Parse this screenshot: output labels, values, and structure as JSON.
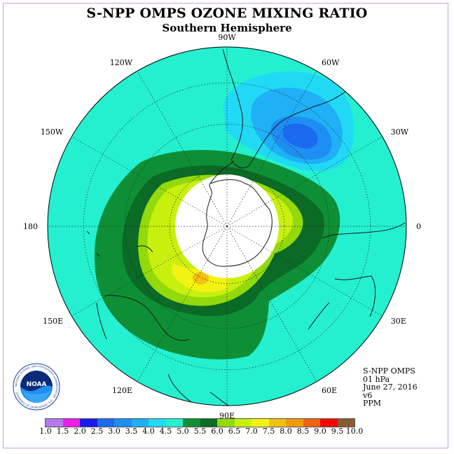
{
  "title": "S-NPP OMPS OZONE MIXING RATIO",
  "subtitle": "Southern Hemisphere",
  "longitude_labels": [
    "90W",
    "60W",
    "30W",
    "0",
    "30E",
    "60E",
    "90E",
    "120E",
    "150E",
    "180",
    "150W",
    "120W"
  ],
  "info": {
    "instrument": "S-NPP OMPS",
    "level": "01 hPa",
    "date": "June 27, 2016",
    "version": "v6",
    "units": "PPM"
  },
  "logo": {
    "text": "NOAA",
    "ring_text": "NATIONAL OCEANIC AND ATMOSPHERIC ADMINISTRATION · U.S. DEPARTMENT OF COMMERCE"
  },
  "colorbar": {
    "ticks": [
      "1.0",
      "1.5",
      "2.0",
      "2.5",
      "3.0",
      "3.5",
      "4.0",
      "4.5",
      "5.0",
      "5.5",
      "6.0",
      "6.5",
      "7.0",
      "7.5",
      "8.0",
      "8.5",
      "9.0",
      "9.5",
      "10.0"
    ],
    "colors": [
      "#b57af0",
      "#d9a3f0",
      "#ee1ee6",
      "#1a1af0",
      "#1c6af0",
      "#1e8ef2",
      "#1fb0f5",
      "#21d9f5",
      "#24f0d0",
      "#0e8f36",
      "#0a6a26",
      "#93d90b",
      "#c8f00f",
      "#f3f312",
      "#f2c20f",
      "#f29b0c",
      "#f2620a",
      "#f20505",
      "#8a5a36"
    ]
  },
  "field": {
    "background": "#24f0d0",
    "ozone_low_colors": [
      "#21d9f5",
      "#1fb0f5",
      "#1e8ef2",
      "#1c6af0"
    ],
    "ozone_high_colors": [
      "#0e8f36",
      "#0a6a26",
      "#93d90b",
      "#c8f00f",
      "#f3f312",
      "#f2c20f",
      "#f29b0c"
    ]
  }
}
